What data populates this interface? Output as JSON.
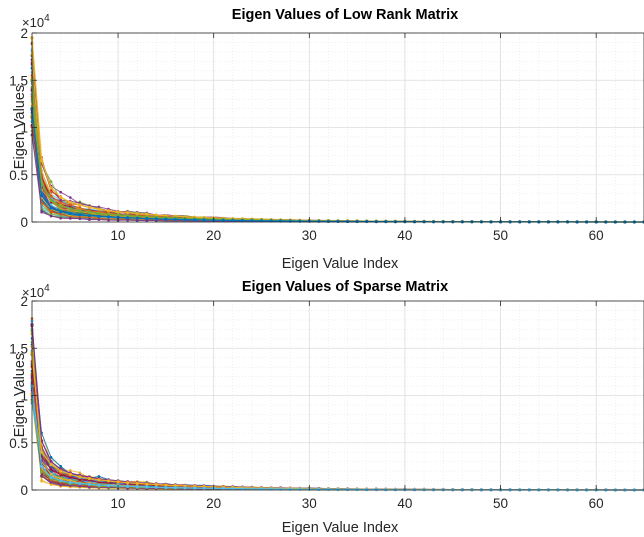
{
  "chart_data": [
    {
      "type": "line",
      "title": "Eigen Values of Low Rank Matrix",
      "xlabel": "Eigen Value Index",
      "ylabel": "Eigen Values",
      "xlim": [
        1,
        65
      ],
      "ylim": [
        0,
        20000
      ],
      "xticks": [
        10,
        20,
        30,
        40,
        50,
        60
      ],
      "yticks": [
        0,
        5000,
        10000,
        15000,
        20000
      ],
      "ytick_labels": [
        "0",
        "0.5",
        "1",
        "1.5",
        "2"
      ],
      "y_exponent_base": "×10",
      "y_exponent_power": "4",
      "grid": "on (major + minor, dotted)",
      "markers": "dot",
      "series_count": 64,
      "representative_series": [
        {
          "color": "#EDB120",
          "values": [
            19500,
            6500,
            3600,
            2600,
            2100,
            1800,
            1550,
            1350,
            1200,
            1080,
            980,
            880,
            800,
            730,
            670,
            610,
            560,
            510,
            470,
            430,
            395,
            360,
            330,
            300,
            275,
            250,
            228,
            208,
            190,
            173,
            158,
            145,
            133,
            122,
            112,
            103,
            95,
            88,
            81,
            75,
            69,
            63,
            58,
            53,
            49,
            45,
            41,
            38,
            35,
            32,
            29,
            27,
            25,
            23,
            21,
            19,
            17,
            15,
            13,
            11,
            9,
            7,
            5,
            3,
            1
          ]
        },
        {
          "color": "#77AC30",
          "values": [
            15000,
            4200,
            2300,
            1700,
            1400,
            1200,
            1050,
            930,
            830,
            750,
            680,
            620,
            565,
            515,
            470,
            430,
            395,
            362,
            332,
            305,
            280,
            257,
            236,
            216,
            198,
            181,
            166,
            152,
            139,
            127,
            116,
            106,
            97,
            89,
            81,
            74,
            68,
            62,
            57,
            52,
            47,
            43,
            39,
            36,
            33,
            30,
            27,
            25,
            23,
            21,
            19,
            17,
            15,
            14,
            12,
            11,
            10,
            9,
            8,
            6,
            5,
            4,
            3,
            2,
            1
          ]
        },
        {
          "color": "#0072BD",
          "values": [
            12000,
            2800,
            1500,
            1100,
            900,
            780,
            680,
            600,
            540,
            485,
            440,
            400,
            365,
            333,
            304,
            278,
            254,
            233,
            213,
            195,
            179,
            164,
            150,
            137,
            126,
            115,
            105,
            96,
            88,
            81,
            74,
            68,
            62,
            57,
            52,
            48,
            44,
            40,
            37,
            34,
            31,
            28,
            26,
            24,
            22,
            20,
            18,
            16,
            15,
            13,
            12,
            11,
            10,
            9,
            8,
            7,
            6,
            5,
            4,
            3,
            3,
            2,
            2,
            1,
            1
          ]
        }
      ]
    },
    {
      "type": "line",
      "title": "Eigen Values of Sparse Matrix",
      "xlabel": "Eigen Value Index",
      "ylabel": "Eigen Values",
      "xlim": [
        1,
        65
      ],
      "ylim": [
        0,
        20000
      ],
      "xticks": [
        10,
        20,
        30,
        40,
        50,
        60
      ],
      "yticks": [
        0,
        5000,
        10000,
        15000,
        20000
      ],
      "ytick_labels": [
        "0",
        "0.5",
        "1",
        "1.5",
        "2"
      ],
      "y_exponent_base": "×10",
      "y_exponent_power": "4",
      "grid": "on (major + minor, dotted)",
      "markers": "dot",
      "series_count": 64,
      "representative_series": [
        {
          "color": "#7E2F8E",
          "values": [
            17500,
            5200,
            3000,
            2200,
            1800,
            1550,
            1350,
            1190,
            1060,
            950,
            860,
            780,
            710,
            650,
            595,
            545,
            500,
            460,
            423,
            389,
            358,
            329,
            303,
            279,
            257,
            236,
            217,
            200,
            184,
            169,
            155,
            142,
            130,
            119,
            109,
            100,
            92,
            84,
            77,
            71,
            65,
            60,
            55,
            50,
            46,
            42,
            39,
            36,
            33,
            30,
            27,
            25,
            23,
            21,
            19,
            17,
            15,
            13,
            11,
            9,
            7,
            5,
            4,
            2,
            1
          ]
        },
        {
          "color": "#EDB120",
          "values": [
            14500,
            4000,
            2700,
            2000,
            1650,
            1400,
            1220,
            1080,
            960,
            860,
            775,
            700,
            635,
            578,
            527,
            481,
            440,
            402,
            368,
            337,
            309,
            283,
            259,
            237,
            217,
            199,
            182,
            167,
            153,
            140,
            128,
            117,
            107,
            98,
            90,
            82,
            75,
            69,
            63,
            58,
            53,
            48,
            44,
            40,
            37,
            34,
            31,
            28,
            26,
            24,
            22,
            20,
            18,
            16,
            15,
            13,
            12,
            10,
            9,
            8,
            6,
            5,
            3,
            2,
            1
          ]
        },
        {
          "color": "#4DBEEE",
          "values": [
            11000,
            2500,
            1350,
            980,
            800,
            690,
            600,
            530,
            475,
            428,
            388,
            353,
            322,
            294,
            269,
            246,
            225,
            206,
            189,
            173,
            159,
            146,
            134,
            123,
            113,
            104,
            95,
            87,
            80,
            73,
            67,
            62,
            57,
            52,
            48,
            44,
            40,
            37,
            34,
            31,
            28,
            26,
            24,
            22,
            20,
            18,
            16,
            15,
            13,
            12,
            11,
            10,
            9,
            8,
            7,
            6,
            5,
            4,
            3,
            3,
            2,
            2,
            1,
            1,
            1
          ]
        }
      ]
    }
  ]
}
